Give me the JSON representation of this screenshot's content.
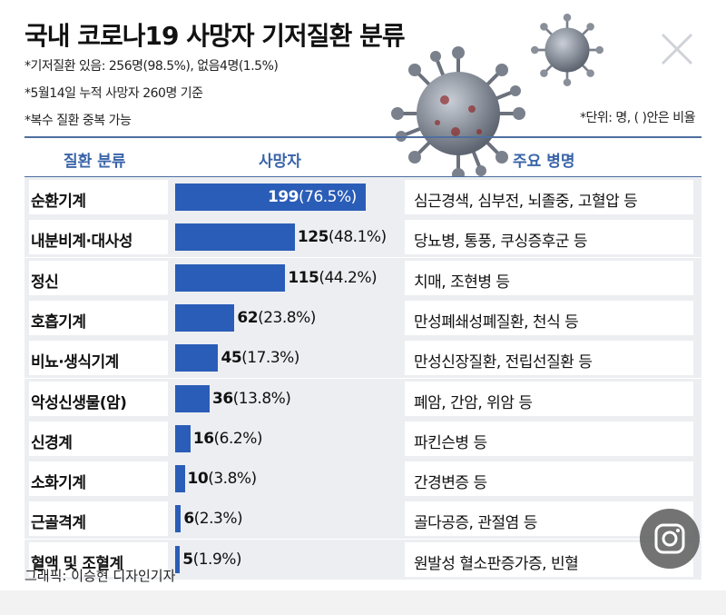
{
  "title": "국내 코로나19 사망자 기저질환 분류",
  "notes": [
    "*기저질환 있음: 256명(98.5%), 없음4명(1.5%)",
    "*5월14일 누적 사망자 260명 기준",
    "*복수 질환 중복 가능"
  ],
  "unit_note": "*단위: 명, ( )안은 비율",
  "headers": {
    "category": "질환 분류",
    "deaths": "사망자",
    "diseases": "주요 병명"
  },
  "credit": "그래픽: 이승현 디자인기자",
  "icons": {
    "close": "close-icon",
    "camera": "camera-lens-icon",
    "virus": "coronavirus-icon"
  },
  "colors": {
    "bar": "#2a5db7",
    "header_text": "#3a64a8",
    "row_bg": "#eceef2"
  },
  "chart_data": {
    "type": "bar",
    "orientation": "horizontal",
    "title": "국내 코로나19 사망자 기저질환 분류",
    "categories": [
      "순환기계",
      "내분비계·대사성",
      "정신",
      "호흡기계",
      "비뇨·생식기계",
      "악성신생물(암)",
      "신경계",
      "소화기계",
      "근골격계",
      "혈액 및 조혈계"
    ],
    "values": [
      199,
      125,
      115,
      62,
      45,
      36,
      16,
      10,
      6,
      5
    ],
    "percent_labels": [
      "(76.5%)",
      "(48.1%)",
      "(44.2%)",
      "(23.8%)",
      "(17.3%)",
      "(13.8%)",
      "(6.2%)",
      "(3.8%)",
      "(2.3%)",
      "(1.9%)"
    ],
    "diseases": [
      "심근경색, 심부전, 뇌졸중, 고혈압 등",
      "당뇨병, 통풍, 쿠싱증후군 등",
      "치매, 조현병 등",
      "만성폐쇄성폐질환, 천식 등",
      "만성신장질환, 전립선질환 등",
      "폐암, 간암, 위암 등",
      "파킨슨병 등",
      "간경변증 등",
      "골다공증, 관절염 등",
      "원발성 혈소판증가증, 빈혈"
    ],
    "xlim": [
      0,
      199
    ],
    "grid": false,
    "legend": "none"
  }
}
